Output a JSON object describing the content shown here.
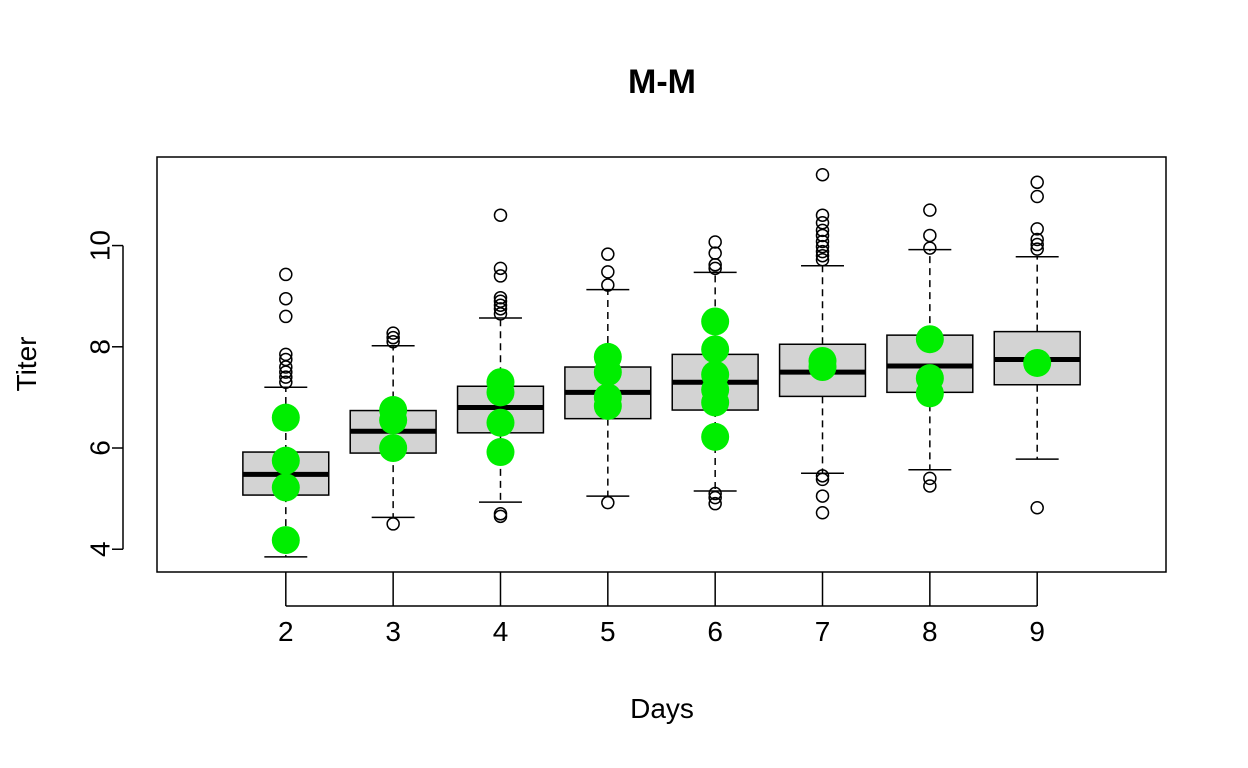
{
  "chart_data": {
    "type": "box",
    "title": "M-M",
    "xlabel": "Days",
    "ylabel": "Titer",
    "categories": [
      "2",
      "3",
      "4",
      "5",
      "6",
      "7",
      "8",
      "9"
    ],
    "x_extent": [
      0.8,
      10.2
    ],
    "ylim": [
      3.55,
      11.75
    ],
    "yticks": [
      4,
      6,
      8,
      10
    ],
    "grid": false,
    "colors": {
      "box_fill": "#d3d3d3",
      "box_stroke": "#000000",
      "median": "#000000",
      "observed_points": "#00ee00",
      "outliers": "#000000"
    },
    "boxes": [
      {
        "category": "2",
        "min": 3.85,
        "q1": 5.07,
        "median": 5.48,
        "q3": 5.92,
        "max": 7.2,
        "outliers": [
          7.3,
          7.4,
          7.5,
          7.6,
          7.75,
          7.85,
          8.6,
          8.95,
          9.43
        ],
        "observed": [
          6.6,
          5.75,
          5.22,
          4.18
        ]
      },
      {
        "category": "3",
        "min": 4.63,
        "q1": 5.9,
        "median": 6.33,
        "q3": 6.74,
        "max": 8.02,
        "outliers": [
          4.5,
          8.1,
          8.18,
          8.27
        ],
        "observed": [
          6.75,
          6.55,
          6.0
        ]
      },
      {
        "category": "4",
        "min": 4.93,
        "q1": 6.3,
        "median": 6.8,
        "q3": 7.22,
        "max": 8.57,
        "outliers": [
          4.65,
          4.7,
          8.65,
          8.75,
          8.82,
          8.9,
          8.97,
          9.4,
          9.55,
          10.6
        ],
        "observed": [
          7.3,
          7.1,
          6.5,
          5.92
        ]
      },
      {
        "category": "5",
        "min": 5.05,
        "q1": 6.58,
        "median": 7.1,
        "q3": 7.6,
        "max": 9.13,
        "outliers": [
          4.92,
          9.22,
          9.48,
          9.83
        ],
        "observed": [
          7.8,
          7.5,
          7.0,
          6.83
        ]
      },
      {
        "category": "6",
        "min": 5.15,
        "q1": 6.75,
        "median": 7.3,
        "q3": 7.85,
        "max": 9.47,
        "outliers": [
          4.9,
          5.02,
          5.1,
          9.55,
          9.62,
          9.85,
          10.07
        ],
        "observed": [
          8.5,
          7.95,
          7.45,
          7.15,
          6.9,
          6.22
        ]
      },
      {
        "category": "7",
        "min": 5.5,
        "q1": 7.02,
        "median": 7.5,
        "q3": 8.05,
        "max": 9.6,
        "outliers": [
          4.72,
          5.05,
          5.38,
          5.45,
          9.72,
          9.8,
          9.88,
          9.98,
          10.08,
          10.2,
          10.3,
          10.45,
          10.6,
          11.4
        ],
        "observed": [
          7.72,
          7.6
        ]
      },
      {
        "category": "8",
        "min": 5.57,
        "q1": 7.1,
        "median": 7.62,
        "q3": 8.23,
        "max": 9.92,
        "outliers": [
          5.25,
          5.4,
          9.95,
          10.2,
          10.7
        ],
        "observed": [
          8.15,
          7.38,
          7.08
        ]
      },
      {
        "category": "9",
        "min": 5.78,
        "q1": 7.25,
        "median": 7.75,
        "q3": 8.3,
        "max": 9.78,
        "outliers": [
          4.82,
          9.93,
          10.02,
          10.12,
          10.33,
          10.97,
          11.25
        ],
        "observed": [
          7.68
        ]
      }
    ]
  }
}
